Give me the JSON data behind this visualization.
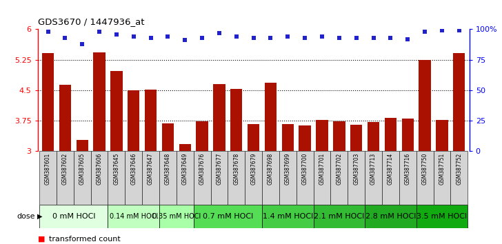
{
  "title": "GDS3670 / 1447936_at",
  "samples": [
    "GSM387601",
    "GSM387602",
    "GSM387605",
    "GSM387606",
    "GSM387645",
    "GSM387646",
    "GSM387647",
    "GSM387648",
    "GSM387649",
    "GSM387676",
    "GSM387677",
    "GSM387678",
    "GSM387679",
    "GSM387698",
    "GSM387699",
    "GSM387700",
    "GSM387701",
    "GSM387702",
    "GSM387703",
    "GSM387713",
    "GSM387714",
    "GSM387716",
    "GSM387750",
    "GSM387751",
    "GSM387752"
  ],
  "bar_values": [
    5.42,
    4.63,
    3.28,
    5.43,
    4.97,
    4.5,
    4.52,
    3.68,
    3.18,
    3.73,
    4.65,
    4.54,
    3.67,
    4.68,
    3.67,
    3.64,
    3.77,
    3.73,
    3.65,
    3.72,
    3.82,
    3.8,
    5.25,
    3.77,
    5.42
  ],
  "percentile_pct": [
    98,
    93,
    88,
    98,
    96,
    94,
    93,
    94,
    91,
    93,
    97,
    94,
    93,
    93,
    94,
    93,
    94,
    93,
    93,
    93,
    93,
    92,
    98,
    99,
    99
  ],
  "dose_groups": [
    {
      "label": "0 mM HOCl",
      "start": 0,
      "end": 4,
      "color": "#e0ffe0",
      "font_size": 8
    },
    {
      "label": "0.14 mM HOCl",
      "start": 4,
      "end": 7,
      "color": "#c8ffc8",
      "font_size": 7
    },
    {
      "label": "0.35 mM HOCl",
      "start": 7,
      "end": 9,
      "color": "#b0ffb0",
      "font_size": 7
    },
    {
      "label": "0.7 mM HOCl",
      "start": 9,
      "end": 13,
      "color": "#66dd66",
      "font_size": 8
    },
    {
      "label": "1.4 mM HOCl",
      "start": 13,
      "end": 16,
      "color": "#44cc44",
      "font_size": 8
    },
    {
      "label": "2.1 mM HOCl",
      "start": 16,
      "end": 19,
      "color": "#33bb33",
      "font_size": 8
    },
    {
      "label": "2.8 mM HOCl",
      "start": 19,
      "end": 22,
      "color": "#22aa22",
      "font_size": 8
    },
    {
      "label": "3.5 mM HOCl",
      "start": 22,
      "end": 25,
      "color": "#11aa11",
      "font_size": 8
    }
  ],
  "ylim": [
    3.0,
    6.0
  ],
  "yticks": [
    3.0,
    3.75,
    4.5,
    5.25,
    6.0
  ],
  "ytick_labels": [
    "3",
    "3.75",
    "4.5",
    "5.25",
    "6"
  ],
  "right_ytick_labels": [
    "0",
    "25",
    "50",
    "75",
    "100%"
  ],
  "bar_color": "#aa1100",
  "scatter_color": "#2222cc",
  "label_bg_color": "#d4d4d4"
}
